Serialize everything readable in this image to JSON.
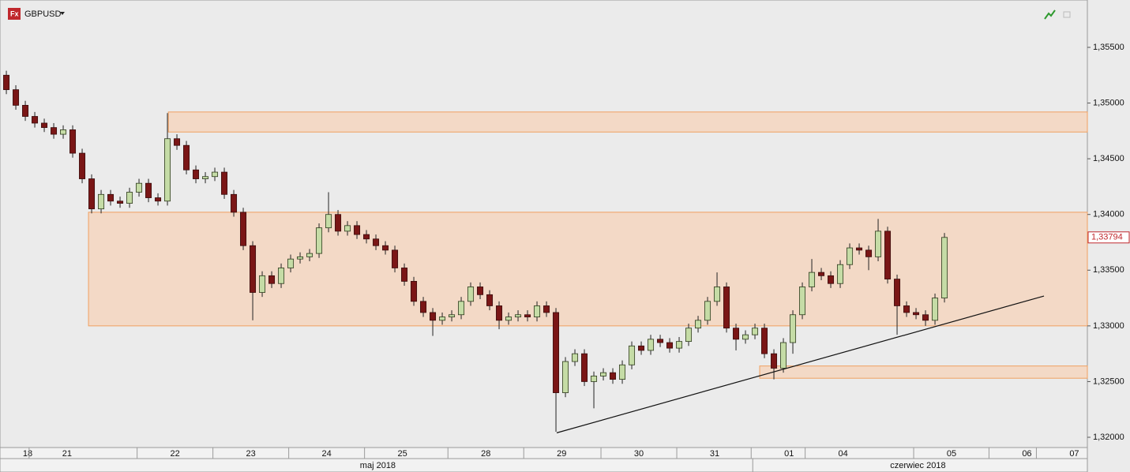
{
  "chart_data": {
    "type": "candlestick",
    "title": "GBPUSD",
    "up_color": "#c5dca6",
    "down_color": "#7a1616",
    "zone_color": "#f3d9c6",
    "zone_border": "#f0a060",
    "ylim": [
      1.31908,
      1.35925
    ],
    "xlim": [
      -0.67,
      114.08
    ],
    "yticks": [
      {
        "value": 1.32,
        "label": "1,32000"
      },
      {
        "value": 1.325,
        "label": "1,32500"
      },
      {
        "value": 1.33,
        "label": "1,33000"
      },
      {
        "value": 1.335,
        "label": "1,33500"
      },
      {
        "value": 1.34,
        "label": "1,34000"
      },
      {
        "value": 1.345,
        "label": "1,34500"
      },
      {
        "value": 1.35,
        "label": "1,35000"
      },
      {
        "value": 1.355,
        "label": "1,35500"
      }
    ],
    "x_labels": [
      {
        "value": 2.25,
        "label": "18"
      },
      {
        "value": 6.4,
        "label": "21"
      },
      {
        "value": 17.8,
        "label": "22"
      },
      {
        "value": 25.8,
        "label": "23"
      },
      {
        "value": 33.8,
        "label": "24"
      },
      {
        "value": 41.8,
        "label": "25"
      },
      {
        "value": 50.6,
        "label": "28"
      },
      {
        "value": 58.6,
        "label": "29"
      },
      {
        "value": 66.75,
        "label": "30"
      },
      {
        "value": 74.75,
        "label": "31"
      },
      {
        "value": 82.6,
        "label": "01"
      },
      {
        "value": 88.3,
        "label": "04"
      },
      {
        "value": 99.75,
        "label": "05"
      },
      {
        "value": 107.7,
        "label": "06"
      },
      {
        "value": 112.7,
        "label": "07"
      }
    ],
    "months": [
      {
        "value": 39.2,
        "label": "maj 2018"
      },
      {
        "value": 96.2,
        "label": "czerwiec 2018"
      }
    ],
    "last_price": {
      "value": 1.33794,
      "label": "1,33794"
    },
    "zones": [
      {
        "xstart": 17.1,
        "low": 1.3474,
        "high": 1.3492
      },
      {
        "xstart": 8.67,
        "low": 1.33,
        "high": 1.3402
      },
      {
        "xstart": 79.5,
        "low": 1.3253,
        "high": 1.3264
      }
    ],
    "trendline": {
      "x": [
        58.08,
        109.5
      ],
      "y": [
        1.3204,
        1.33268
      ]
    },
    "ohlc": [
      [
        1.3525,
        1.3529,
        1.3508,
        1.3512
      ],
      [
        1.3512,
        1.3516,
        1.3494,
        1.3498
      ],
      [
        1.3498,
        1.3502,
        1.3484,
        1.3488
      ],
      [
        1.3488,
        1.3492,
        1.3478,
        1.3482
      ],
      [
        1.3482,
        1.3486,
        1.3474,
        1.3478
      ],
      [
        1.3478,
        1.3482,
        1.3468,
        1.3472
      ],
      [
        1.3472,
        1.348,
        1.3468,
        1.3476
      ],
      [
        1.3476,
        1.348,
        1.3451,
        1.3455
      ],
      [
        1.3455,
        1.3459,
        1.3428,
        1.3432
      ],
      [
        1.3432,
        1.3436,
        1.3401,
        1.3405
      ],
      [
        1.3405,
        1.3422,
        1.3401,
        1.3418
      ],
      [
        1.3418,
        1.3422,
        1.3408,
        1.3412
      ],
      [
        1.3412,
        1.3416,
        1.3406,
        1.341
      ],
      [
        1.341,
        1.3424,
        1.3406,
        1.342
      ],
      [
        1.342,
        1.3432,
        1.3416,
        1.3428
      ],
      [
        1.3428,
        1.3432,
        1.3411,
        1.3415
      ],
      [
        1.3415,
        1.3419,
        1.3408,
        1.3412
      ],
      [
        1.3412,
        1.3491,
        1.3408,
        1.3468
      ],
      [
        1.3468,
        1.3472,
        1.3458,
        1.3462
      ],
      [
        1.3462,
        1.3466,
        1.3436,
        1.344
      ],
      [
        1.344,
        1.3444,
        1.3428,
        1.3432
      ],
      [
        1.3432,
        1.3438,
        1.3428,
        1.3434
      ],
      [
        1.3434,
        1.3442,
        1.343,
        1.3438
      ],
      [
        1.3438,
        1.3442,
        1.3414,
        1.3418
      ],
      [
        1.3418,
        1.3422,
        1.3398,
        1.3402
      ],
      [
        1.3402,
        1.3406,
        1.3368,
        1.3372
      ],
      [
        1.3372,
        1.3376,
        1.3305,
        1.333
      ],
      [
        1.333,
        1.3349,
        1.3326,
        1.3345
      ],
      [
        1.3345,
        1.3349,
        1.3334,
        1.3338
      ],
      [
        1.3338,
        1.3356,
        1.3334,
        1.3352
      ],
      [
        1.3352,
        1.3364,
        1.3348,
        1.336
      ],
      [
        1.336,
        1.3366,
        1.3356,
        1.3362
      ],
      [
        1.3362,
        1.3369,
        1.3358,
        1.3365
      ],
      [
        1.3365,
        1.3392,
        1.3361,
        1.3388
      ],
      [
        1.3388,
        1.342,
        1.3384,
        1.34
      ],
      [
        1.34,
        1.3404,
        1.3381,
        1.3385
      ],
      [
        1.3385,
        1.3394,
        1.3381,
        1.339
      ],
      [
        1.339,
        1.3394,
        1.3378,
        1.3382
      ],
      [
        1.3382,
        1.3386,
        1.3374,
        1.3378
      ],
      [
        1.3378,
        1.3382,
        1.3368,
        1.3372
      ],
      [
        1.3372,
        1.3376,
        1.3364,
        1.3368
      ],
      [
        1.3368,
        1.3372,
        1.3348,
        1.3352
      ],
      [
        1.3352,
        1.3356,
        1.3336,
        1.334
      ],
      [
        1.334,
        1.3344,
        1.3318,
        1.3322
      ],
      [
        1.3322,
        1.3326,
        1.3308,
        1.3312
      ],
      [
        1.3312,
        1.3316,
        1.3291,
        1.3305
      ],
      [
        1.3305,
        1.3312,
        1.3301,
        1.3308
      ],
      [
        1.3308,
        1.3314,
        1.3304,
        1.331
      ],
      [
        1.331,
        1.3326,
        1.3306,
        1.3322
      ],
      [
        1.3322,
        1.3339,
        1.3318,
        1.3335
      ],
      [
        1.3335,
        1.3339,
        1.3324,
        1.3328
      ],
      [
        1.3328,
        1.3332,
        1.3314,
        1.3318
      ],
      [
        1.3318,
        1.3322,
        1.3297,
        1.3305
      ],
      [
        1.3305,
        1.3312,
        1.3301,
        1.3308
      ],
      [
        1.3308,
        1.3314,
        1.3304,
        1.331
      ],
      [
        1.331,
        1.3314,
        1.3304,
        1.3308
      ],
      [
        1.3308,
        1.3322,
        1.3304,
        1.3318
      ],
      [
        1.3318,
        1.3322,
        1.3308,
        1.3312
      ],
      [
        1.3312,
        1.3316,
        1.3205,
        1.324
      ],
      [
        1.324,
        1.3272,
        1.3236,
        1.3268
      ],
      [
        1.3268,
        1.3279,
        1.3264,
        1.3275
      ],
      [
        1.3275,
        1.3279,
        1.3246,
        1.325
      ],
      [
        1.325,
        1.3259,
        1.3226,
        1.3255
      ],
      [
        1.3255,
        1.3262,
        1.3251,
        1.3258
      ],
      [
        1.3258,
        1.3262,
        1.3248,
        1.3252
      ],
      [
        1.3252,
        1.3269,
        1.3248,
        1.3265
      ],
      [
        1.3265,
        1.3286,
        1.3261,
        1.3282
      ],
      [
        1.3282,
        1.3286,
        1.3274,
        1.3278
      ],
      [
        1.3278,
        1.3292,
        1.3274,
        1.3288
      ],
      [
        1.3288,
        1.3292,
        1.3281,
        1.3285
      ],
      [
        1.3285,
        1.3289,
        1.3276,
        1.328
      ],
      [
        1.328,
        1.329,
        1.3276,
        1.3286
      ],
      [
        1.3286,
        1.3302,
        1.3282,
        1.3298
      ],
      [
        1.3298,
        1.3309,
        1.3294,
        1.3305
      ],
      [
        1.3305,
        1.3326,
        1.3301,
        1.3322
      ],
      [
        1.3322,
        1.3348,
        1.3318,
        1.3335
      ],
      [
        1.3335,
        1.3339,
        1.3294,
        1.3298
      ],
      [
        1.3298,
        1.3302,
        1.3278,
        1.3288
      ],
      [
        1.3288,
        1.3296,
        1.3284,
        1.3292
      ],
      [
        1.3292,
        1.3302,
        1.3288,
        1.3298
      ],
      [
        1.3298,
        1.3302,
        1.3271,
        1.3275
      ],
      [
        1.3275,
        1.3279,
        1.3252,
        1.3262
      ],
      [
        1.3262,
        1.3289,
        1.3258,
        1.3285
      ],
      [
        1.3285,
        1.3314,
        1.3275,
        1.331
      ],
      [
        1.331,
        1.3339,
        1.3306,
        1.3335
      ],
      [
        1.3335,
        1.336,
        1.3331,
        1.3348
      ],
      [
        1.3348,
        1.3352,
        1.3341,
        1.3345
      ],
      [
        1.3345,
        1.3349,
        1.3334,
        1.3338
      ],
      [
        1.3338,
        1.3359,
        1.3334,
        1.3355
      ],
      [
        1.3355,
        1.3374,
        1.3351,
        1.337
      ],
      [
        1.337,
        1.3374,
        1.3364,
        1.3368
      ],
      [
        1.3368,
        1.3372,
        1.335,
        1.3362
      ],
      [
        1.3362,
        1.3396,
        1.3358,
        1.3385
      ],
      [
        1.3385,
        1.3389,
        1.3338,
        1.3342
      ],
      [
        1.3342,
        1.3346,
        1.3292,
        1.3318
      ],
      [
        1.3318,
        1.3322,
        1.3308,
        1.3312
      ],
      [
        1.3312,
        1.3316,
        1.3306,
        1.331
      ],
      [
        1.331,
        1.3314,
        1.33,
        1.3305
      ],
      [
        1.3305,
        1.3329,
        1.3301,
        1.3325
      ],
      [
        1.3325,
        1.33834,
        1.3321,
        1.33794
      ]
    ]
  }
}
